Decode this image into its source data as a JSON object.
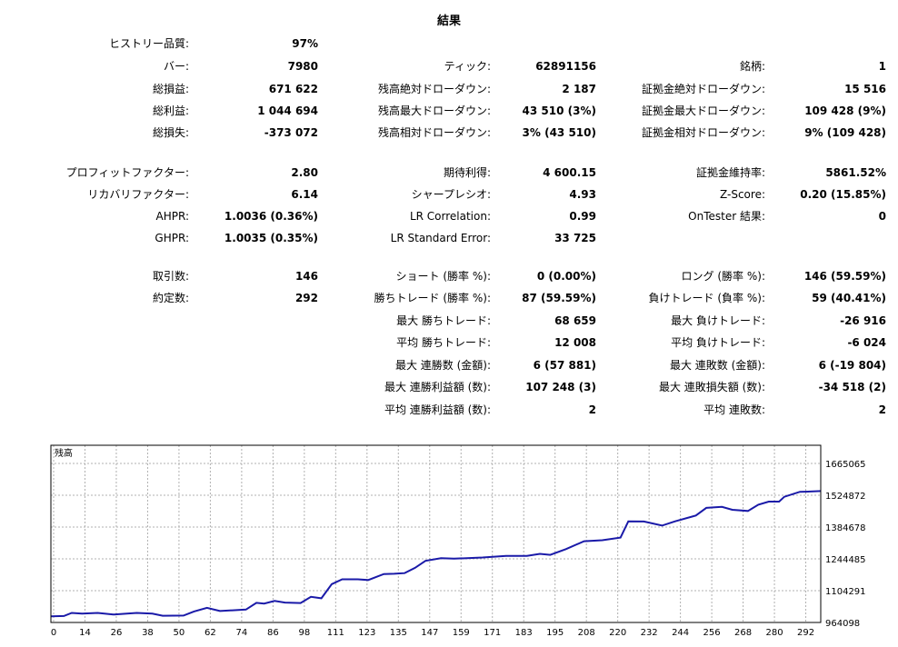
{
  "title": "結果",
  "rows": [
    [
      [
        "ヒストリー品質:",
        "97%"
      ],
      null,
      null
    ],
    [
      [
        "バー:",
        "7980"
      ],
      [
        "ティック:",
        "62891156"
      ],
      [
        "銘柄:",
        "1"
      ]
    ],
    [
      [
        "総損益:",
        "671 622"
      ],
      [
        "残高絶対ドローダウン:",
        "2 187"
      ],
      [
        "証拠金絶対ドローダウン:",
        "15 516"
      ]
    ],
    [
      [
        "総利益:",
        "1 044 694"
      ],
      [
        "残高最大ドローダウン:",
        "43 510 (3%)"
      ],
      [
        "証拠金最大ドローダウン:",
        "109 428 (9%)"
      ]
    ],
    [
      [
        "総損失:",
        "-373 072"
      ],
      [
        "残高相対ドローダウン:",
        "3% (43 510)"
      ],
      [
        "証拠金相対ドローダウン:",
        "9% (109 428)"
      ]
    ],
    [
      [
        "プロフィットファクター:",
        "2.80"
      ],
      [
        "期待利得:",
        "4 600.15"
      ],
      [
        "証拠金維持率:",
        "5861.52%"
      ]
    ],
    [
      [
        "リカバリファクター:",
        "6.14"
      ],
      [
        "シャープレシオ:",
        "4.93"
      ],
      [
        "Z-Score:",
        "0.20 (15.85%)"
      ]
    ],
    [
      [
        "AHPR:",
        "1.0036 (0.36%)"
      ],
      [
        "LR Correlation:",
        "0.99"
      ],
      [
        "OnTester 結果:",
        "0"
      ]
    ],
    [
      [
        "GHPR:",
        "1.0035 (0.35%)"
      ],
      [
        "LR Standard Error:",
        "33 725"
      ],
      null
    ],
    [
      [
        "取引数:",
        "146"
      ],
      [
        "ショート (勝率 %):",
        "0 (0.00%)"
      ],
      [
        "ロング (勝率 %):",
        "146 (59.59%)"
      ]
    ],
    [
      [
        "約定数:",
        "292"
      ],
      [
        "勝ちトレード (勝率 %):",
        "87 (59.59%)"
      ],
      [
        "負けトレード (負率 %):",
        "59 (40.41%)"
      ]
    ],
    [
      null,
      [
        "最大 勝ちトレード:",
        "68 659"
      ],
      [
        "最大 負けトレード:",
        "-26 916"
      ]
    ],
    [
      null,
      [
        "平均 勝ちトレード:",
        "12 008"
      ],
      [
        "平均 負けトレード:",
        "-6 024"
      ]
    ],
    [
      null,
      [
        "最大 連勝数 (金額):",
        "6 (57 881)"
      ],
      [
        "最大 連敗数 (金額):",
        "6 (-19 804)"
      ]
    ],
    [
      null,
      [
        "最大 連勝利益額 (数):",
        "107 248 (3)"
      ],
      [
        "最大 連敗損失額 (数):",
        "-34 518 (2)"
      ]
    ],
    [
      null,
      [
        "平均 連勝利益額 (数):",
        "2"
      ],
      [
        "平均 連敗数:",
        "2"
      ]
    ]
  ],
  "chart_data": {
    "type": "line",
    "title": "残高",
    "x_ticks": [
      "0",
      "14",
      "26",
      "38",
      "50",
      "62",
      "74",
      "86",
      "98",
      "111",
      "123",
      "135",
      "147",
      "159",
      "171",
      "183",
      "195",
      "208",
      "220",
      "232",
      "244",
      "256",
      "268",
      "280",
      "292"
    ],
    "y_ticks": [
      "1665065",
      "1524872",
      "1384678",
      "1244485",
      "1104291",
      "964098"
    ],
    "ylim": [
      964098,
      1665065
    ],
    "xlim": [
      0,
      296
    ],
    "series": [
      {
        "color": "#1a1aa8",
        "points": [
          [
            0,
            990000
          ],
          [
            5,
            991000
          ],
          [
            8,
            1004000
          ],
          [
            12,
            1001000
          ],
          [
            18,
            1004000
          ],
          [
            24,
            997000
          ],
          [
            33,
            1004000
          ],
          [
            39,
            1001000
          ],
          [
            43,
            992000
          ],
          [
            51,
            993000
          ],
          [
            55,
            1010000
          ],
          [
            60,
            1025000
          ],
          [
            65,
            1012000
          ],
          [
            75,
            1018000
          ],
          [
            79,
            1046000
          ],
          [
            82,
            1043000
          ],
          [
            86,
            1054000
          ],
          [
            90,
            1047000
          ],
          [
            96,
            1045000
          ],
          [
            100,
            1071000
          ],
          [
            104,
            1065000
          ],
          [
            108,
            1124000
          ],
          [
            112,
            1144000
          ],
          [
            118,
            1144000
          ],
          [
            122,
            1141000
          ],
          [
            128,
            1166000
          ],
          [
            132,
            1167000
          ],
          [
            136,
            1170000
          ],
          [
            140,
            1192000
          ],
          [
            144,
            1221000
          ],
          [
            150,
            1232000
          ],
          [
            155,
            1230000
          ],
          [
            166,
            1235000
          ],
          [
            175,
            1242000
          ],
          [
            183,
            1242000
          ],
          [
            188,
            1250000
          ],
          [
            192,
            1246000
          ],
          [
            198,
            1270000
          ],
          [
            205,
            1303000
          ],
          [
            212,
            1307000
          ],
          [
            219,
            1318000
          ],
          [
            222,
            1386000
          ],
          [
            228,
            1385000
          ],
          [
            235,
            1368000
          ],
          [
            240,
            1386000
          ],
          [
            248,
            1410000
          ],
          [
            252,
            1442000
          ],
          [
            258,
            1446000
          ],
          [
            262,
            1434000
          ],
          [
            268,
            1429000
          ],
          [
            272,
            1455000
          ],
          [
            276,
            1468000
          ],
          [
            280,
            1468000
          ],
          [
            282,
            1488000
          ],
          [
            288,
            1509000
          ],
          [
            292,
            1510000
          ],
          [
            296,
            1512000
          ]
        ]
      }
    ],
    "grid": true,
    "line_color": "#1a1aa8"
  }
}
